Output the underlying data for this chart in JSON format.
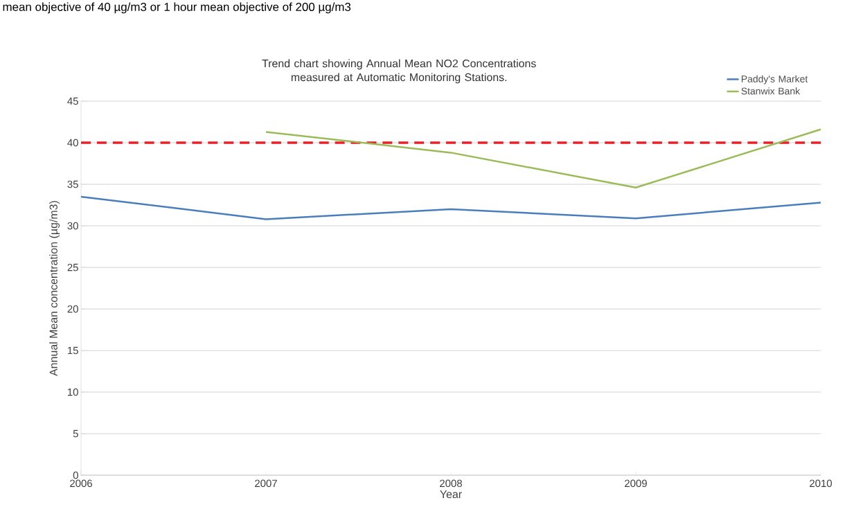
{
  "chart_data": {
    "type": "line",
    "title": "Trend chart showing Annual Mean NO2 Concentrations measured at  Automatic Monitoring Stations.",
    "xlabel": "Year",
    "ylabel": "Annual Mean concentration (µg/m3)",
    "annotations": [
      "mean objective of 40 µg/m3 or 1 hour mean objective of 200 µg/m3"
    ],
    "x": [
      2006,
      2007,
      2008,
      2009,
      2010
    ],
    "series": [
      {
        "name": "Paddy's Market",
        "color": "#4a7ebb",
        "values": [
          33.5,
          30.8,
          32.0,
          30.9,
          32.8
        ]
      },
      {
        "name": "Stanwix Bank",
        "color": "#9bbb59",
        "values": [
          null,
          41.3,
          38.8,
          34.6,
          41.6
        ]
      }
    ],
    "ref_lines": [
      {
        "axis": "y",
        "value": 40,
        "color": "#e8202a",
        "line_style": "dashed"
      }
    ],
    "xlim": [
      2006,
      2010
    ],
    "xticks": [
      2006,
      2007,
      2008,
      2009,
      2010
    ],
    "ylim": [
      0,
      45
    ],
    "yticks": [
      0,
      5,
      10,
      15,
      20,
      25,
      30,
      35,
      40,
      45
    ],
    "grid": "y",
    "legend": "top right",
    "marker": "none",
    "line_style": "solid"
  }
}
